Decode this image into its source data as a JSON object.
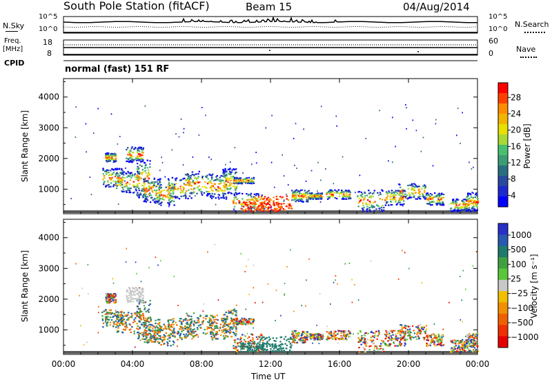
{
  "header": {
    "station": "South Pole Station (fitACF)",
    "beam": "Beam 15",
    "date": "04/Aug/2014"
  },
  "side_labels": {
    "nsky": "N.Sky",
    "freq": "Freq.",
    "freq_unit": "[MHz]",
    "cpid": "CPID",
    "nsearch": "N.Search",
    "nave": "Nave",
    "nsky_top": "10^5",
    "nsky_bot": "10^0",
    "nsearch_top": "10^5",
    "nsearch_bot": "10^0",
    "freq_top": "18",
    "freq_bot": "8",
    "nave_top": "60",
    "nave_bot": "0"
  },
  "cpid_text": "normal (fast) 151 RF",
  "colors": {
    "axis": "#000000",
    "gate_bg": "#5a5a5a"
  },
  "chart_data": [
    {
      "type": "heatmap",
      "name": "power",
      "ylabel": "Slant Range [km]",
      "ylim": [
        200,
        4600
      ],
      "yticks": [
        1000,
        2000,
        3000,
        4000
      ],
      "xlim": [
        0,
        24
      ],
      "xticks": [
        0,
        4,
        8,
        12,
        16,
        20,
        24
      ],
      "colorbar": {
        "label": "Power [dB]",
        "ticks": [
          "28",
          "24",
          "20",
          "16",
          "12",
          "8",
          "4"
        ],
        "colors": [
          "#ff0000",
          "#ff4000",
          "#ff8c00",
          "#f2b400",
          "#e8e000",
          "#a8d838",
          "#48c070",
          "#3c9c74",
          "#2a6e80",
          "#284aa0",
          "#1e28d0",
          "#0000ff"
        ]
      }
    },
    {
      "type": "heatmap",
      "name": "velocity",
      "xlabel": "Time UT",
      "ylabel": "Slant Range [km]",
      "ylim": [
        200,
        4600
      ],
      "yticks": [
        1000,
        2000,
        3000,
        4000
      ],
      "xlim": [
        0,
        24
      ],
      "xticks": [
        0,
        4,
        8,
        12,
        16,
        20,
        24
      ],
      "xticklabels": [
        "00:00",
        "04:00",
        "08:00",
        "12:00",
        "16:00",
        "20:00",
        "00:00"
      ],
      "colorbar": {
        "label": "Velocity [m s⁻¹]",
        "ticks": [
          "1000",
          "500",
          "100",
          "25",
          "−25",
          "−100",
          "−500",
          "−1000"
        ],
        "colors": [
          "#2830c8",
          "#2858b0",
          "#1e7a6c",
          "#40a040",
          "#58c838",
          "#c8c8c8",
          "#f0c000",
          "#f09000",
          "#f06000",
          "#f03000",
          "#e80000"
        ]
      }
    }
  ]
}
